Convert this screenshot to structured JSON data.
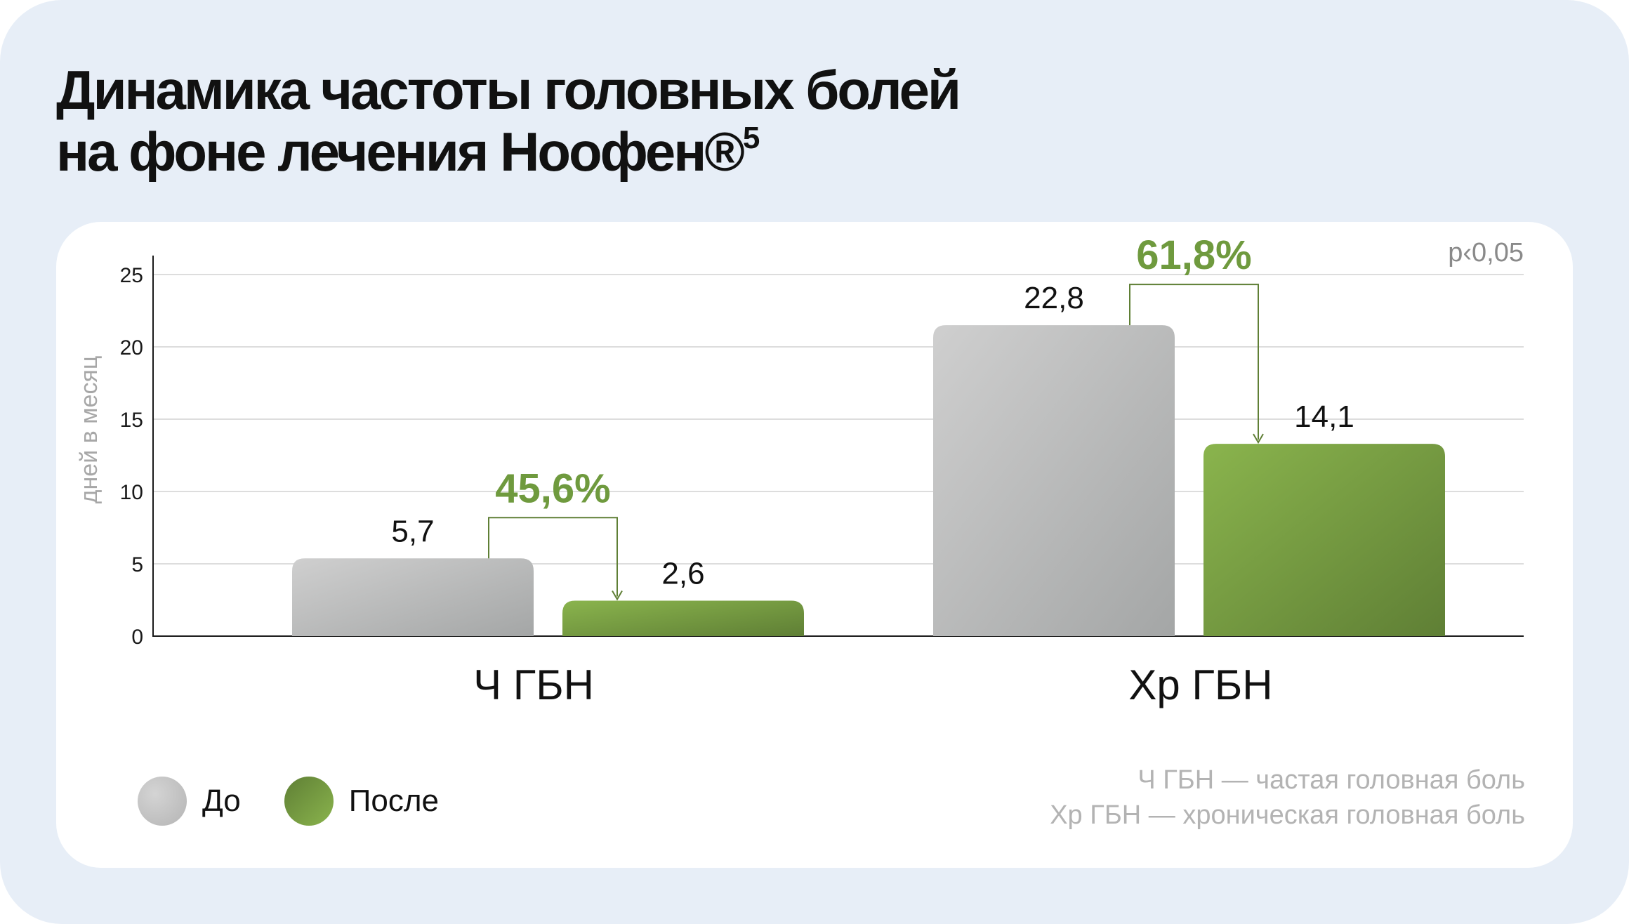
{
  "title": {
    "line1": "Динамика частоты головных болей",
    "line2": "на фоне лечения Ноофен®",
    "footnote": "5"
  },
  "p_value": "p‹0,05",
  "legend": [
    {
      "label": "До",
      "color": "#b9b9b9"
    },
    {
      "label": "После",
      "color": "#7aa443"
    }
  ],
  "notes": [
    "Ч ГБН  — частая головная боль",
    "Хр ГБН — хроническая головная боль"
  ],
  "colors": {
    "before": "#bcbcbc",
    "after": "#7aa443",
    "accent": "#6f9a3e"
  },
  "chart_data": {
    "type": "bar",
    "categories": [
      "Ч ГБН",
      "Хр ГБН"
    ],
    "series": [
      {
        "name": "До",
        "values": [
          5.7,
          22.8
        ],
        "labels": [
          "5,7",
          "22,8"
        ]
      },
      {
        "name": "После",
        "values": [
          2.6,
          14.1
        ],
        "labels": [
          "2,6",
          "14,1"
        ]
      }
    ],
    "reductions": [
      "45,6%",
      "61,8%"
    ],
    "ylabel": "дней в месяц",
    "yticks": [
      0,
      5,
      10,
      15,
      20,
      25
    ],
    "ylim": [
      0,
      25
    ],
    "grid": true,
    "legend_position": "bottom-left"
  }
}
